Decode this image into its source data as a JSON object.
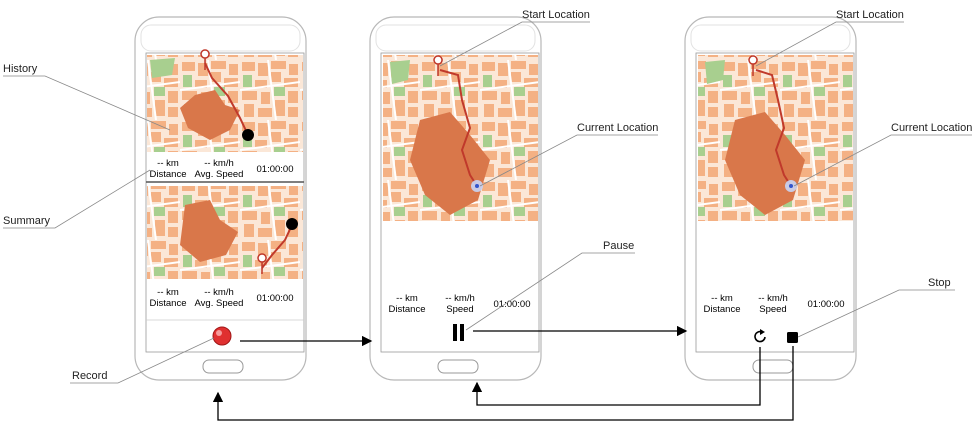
{
  "callouts": {
    "history": "History",
    "summary": "Summary",
    "record": "Record",
    "start_location_1": "Start Location",
    "start_location_2": "Start Location",
    "current_location_1": "Current Location",
    "current_location_2": "Current Location",
    "pause": "Pause",
    "stop": "Stop"
  },
  "phone1": {
    "history_1": {
      "distance_value": "-- km",
      "distance_label": "Distance",
      "speed_value": "-- km/h",
      "speed_label": "Avg. Speed",
      "time": "01:00:00"
    },
    "history_2": {
      "distance_value": "-- km",
      "distance_label": "Distance",
      "speed_value": "-- km/h",
      "speed_label": "Avg. Speed",
      "time": "01:00:00"
    }
  },
  "phone2": {
    "distance_value": "-- km",
    "distance_label": "Distance",
    "speed_value": "-- km/h",
    "speed_label": "Speed",
    "time": "01:00:00"
  },
  "phone3": {
    "distance_value": "-- km",
    "distance_label": "Distance",
    "speed_value": "-- km/h",
    "speed_label": "Speed",
    "time": "01:00:00"
  },
  "colors": {
    "map_block": "#f4b184",
    "map_block_dark": "#d9774a",
    "map_green": "#a8cf8f",
    "route": "#c0392b",
    "record_button": "#e03030",
    "current_location": "#3355cc"
  },
  "icons": {
    "record": "record-button-icon",
    "pause": "pause-icon",
    "stop": "stop-icon",
    "reset": "reset-icon",
    "pin": "location-pin-icon"
  }
}
